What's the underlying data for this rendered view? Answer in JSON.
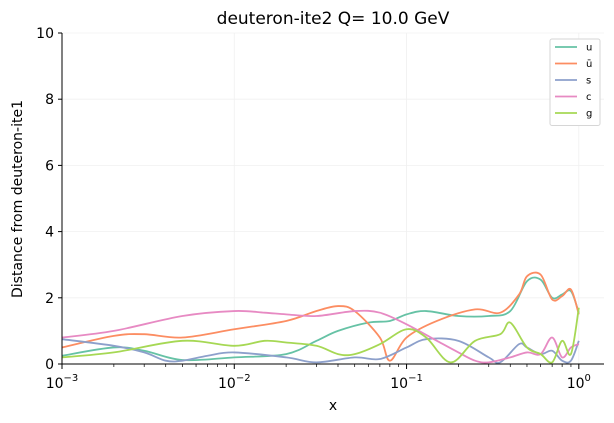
{
  "chart_data": {
    "type": "line",
    "title": "deuteron-ite2 Q= 10.0 GeV",
    "xlabel": "x",
    "ylabel": "Distance from deuteron-ite1",
    "xscale": "log",
    "xlim": [
      0.001,
      1.4
    ],
    "ylim": [
      0,
      10
    ],
    "x_ticks": [
      {
        "value": 0.001,
        "base": "10",
        "exp": "−3"
      },
      {
        "value": 0.01,
        "base": "10",
        "exp": "−2"
      },
      {
        "value": 0.1,
        "base": "10",
        "exp": "−1"
      },
      {
        "value": 1,
        "base": "10",
        "exp": "0"
      }
    ],
    "y_ticks": [
      0,
      2,
      4,
      6,
      8,
      10
    ],
    "grid": false,
    "legend_position": "top-right",
    "series": [
      {
        "name": "u",
        "color": "#66c2a5",
        "points": [
          [
            0.001,
            0.25
          ],
          [
            0.002,
            0.5
          ],
          [
            0.003,
            0.4
          ],
          [
            0.005,
            0.12
          ],
          [
            0.01,
            0.2
          ],
          [
            0.02,
            0.3
          ],
          [
            0.03,
            0.7
          ],
          [
            0.04,
            1.0
          ],
          [
            0.06,
            1.25
          ],
          [
            0.08,
            1.3
          ],
          [
            0.1,
            1.5
          ],
          [
            0.13,
            1.6
          ],
          [
            0.2,
            1.45
          ],
          [
            0.3,
            1.45
          ],
          [
            0.4,
            1.6
          ],
          [
            0.5,
            2.5
          ],
          [
            0.6,
            2.55
          ],
          [
            0.7,
            2.0
          ],
          [
            0.8,
            2.1
          ],
          [
            0.9,
            2.2
          ],
          [
            1.0,
            1.55
          ]
        ]
      },
      {
        "name": "ū",
        "color": "#fc8d62",
        "points": [
          [
            0.001,
            0.5
          ],
          [
            0.002,
            0.85
          ],
          [
            0.003,
            0.9
          ],
          [
            0.005,
            0.8
          ],
          [
            0.01,
            1.05
          ],
          [
            0.02,
            1.3
          ],
          [
            0.03,
            1.6
          ],
          [
            0.04,
            1.75
          ],
          [
            0.05,
            1.6
          ],
          [
            0.07,
            0.8
          ],
          [
            0.08,
            0.1
          ],
          [
            0.1,
            0.8
          ],
          [
            0.15,
            1.3
          ],
          [
            0.25,
            1.65
          ],
          [
            0.35,
            1.55
          ],
          [
            0.45,
            2.1
          ],
          [
            0.5,
            2.65
          ],
          [
            0.6,
            2.7
          ],
          [
            0.7,
            1.95
          ],
          [
            0.8,
            2.05
          ],
          [
            0.9,
            2.25
          ],
          [
            1.0,
            1.5
          ]
        ]
      },
      {
        "name": "s",
        "color": "#8da0cb",
        "points": [
          [
            0.001,
            0.75
          ],
          [
            0.002,
            0.55
          ],
          [
            0.003,
            0.35
          ],
          [
            0.004,
            0.1
          ],
          [
            0.005,
            0.1
          ],
          [
            0.007,
            0.25
          ],
          [
            0.01,
            0.35
          ],
          [
            0.02,
            0.2
          ],
          [
            0.03,
            0.05
          ],
          [
            0.05,
            0.2
          ],
          [
            0.07,
            0.15
          ],
          [
            0.1,
            0.5
          ],
          [
            0.13,
            0.75
          ],
          [
            0.2,
            0.7
          ],
          [
            0.3,
            0.2
          ],
          [
            0.35,
            0.05
          ],
          [
            0.45,
            0.6
          ],
          [
            0.5,
            0.5
          ],
          [
            0.6,
            0.3
          ],
          [
            0.7,
            0.4
          ],
          [
            0.8,
            0.1
          ],
          [
            0.9,
            0.1
          ],
          [
            1.0,
            0.7
          ]
        ]
      },
      {
        "name": "c",
        "color": "#e78ac3",
        "points": [
          [
            0.001,
            0.8
          ],
          [
            0.002,
            1.0
          ],
          [
            0.005,
            1.45
          ],
          [
            0.01,
            1.6
          ],
          [
            0.015,
            1.55
          ],
          [
            0.02,
            1.5
          ],
          [
            0.03,
            1.45
          ],
          [
            0.05,
            1.6
          ],
          [
            0.07,
            1.55
          ],
          [
            0.1,
            1.2
          ],
          [
            0.15,
            0.7
          ],
          [
            0.2,
            0.35
          ],
          [
            0.25,
            0.1
          ],
          [
            0.3,
            0.05
          ],
          [
            0.4,
            0.2
          ],
          [
            0.5,
            0.35
          ],
          [
            0.6,
            0.3
          ],
          [
            0.7,
            0.8
          ],
          [
            0.8,
            0.2
          ],
          [
            0.9,
            0.5
          ],
          [
            1.0,
            0.6
          ]
        ]
      },
      {
        "name": "g",
        "color": "#a6d854",
        "points": [
          [
            0.001,
            0.2
          ],
          [
            0.002,
            0.35
          ],
          [
            0.005,
            0.7
          ],
          [
            0.01,
            0.55
          ],
          [
            0.015,
            0.7
          ],
          [
            0.02,
            0.65
          ],
          [
            0.03,
            0.55
          ],
          [
            0.04,
            0.3
          ],
          [
            0.05,
            0.3
          ],
          [
            0.07,
            0.6
          ],
          [
            0.1,
            1.05
          ],
          [
            0.13,
            0.8
          ],
          [
            0.18,
            0.05
          ],
          [
            0.25,
            0.7
          ],
          [
            0.35,
            0.9
          ],
          [
            0.4,
            1.25
          ],
          [
            0.5,
            0.5
          ],
          [
            0.6,
            0.3
          ],
          [
            0.7,
            0.05
          ],
          [
            0.8,
            0.7
          ],
          [
            0.9,
            0.3
          ],
          [
            1.0,
            1.7
          ]
        ]
      }
    ]
  }
}
